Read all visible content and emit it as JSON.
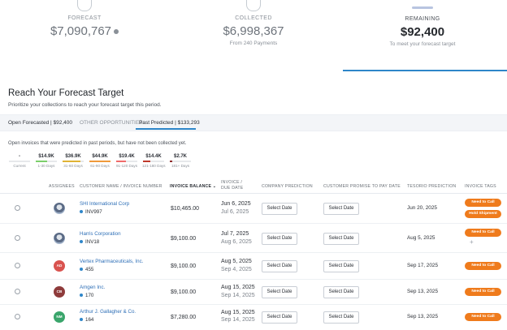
{
  "kpis": [
    {
      "label": "FORECAST",
      "value": "$7,090,767",
      "sub": "",
      "icon": "forecast-icon"
    },
    {
      "label": "COLLECTED",
      "value": "$6,998,367",
      "sub": "From 240 Payments",
      "icon": "collected-icon"
    },
    {
      "label": "REMAINING",
      "value": "$92,400",
      "sub": "To meet your forecast target",
      "icon": "remaining-bar"
    }
  ],
  "section": {
    "title": "Reach Your Forecast Target",
    "subtitle": "Prioritize your collections to reach your forecast target this period."
  },
  "tabs": {
    "open_forecasted": "Open Forecasted | $92,400",
    "other_label": "OTHER OPPORTUNITIES:",
    "past_predicted": "Past Predicted | $133,293"
  },
  "aging_note": "Open invoices that were predicted in past periods, but have not been collected yet.",
  "buckets": [
    {
      "value": "-",
      "label": "Current",
      "color": "#c8ccd2",
      "fill": 0
    },
    {
      "value": "$14.9K",
      "label": "1-30 Days",
      "color": "#7ccf6b",
      "fill": 0.55
    },
    {
      "value": "$36.9K",
      "label": "31-60 Days",
      "color": "#e0b335",
      "fill": 0.85
    },
    {
      "value": "$44.9K",
      "label": "61-90 Days",
      "color": "#ef9a3a",
      "fill": 1
    },
    {
      "value": "$19.4K",
      "label": "91-120 Days",
      "color": "#ef6b6b",
      "fill": 0.45
    },
    {
      "value": "$14.4K",
      "label": "121-180 Days",
      "color": "#c0392b",
      "fill": 0.35
    },
    {
      "value": "$2.7K",
      "label": "181+ Days",
      "color": "#8e2a2a",
      "fill": 0.12
    }
  ],
  "table": {
    "headers": {
      "assignees": "ASSIGNEES",
      "customer": "CUSTOMER NAME / INVOICE NUMBER",
      "balance": "INVOICE BALANCE",
      "invoice_date_1": "INVOICE /",
      "invoice_date_2": "DUE DATE",
      "company_prediction": "COMPANY PREDICTION",
      "customer_promise": "CUSTOMER PROMISE TO PAY DATE",
      "tesorio_prediction": "TESORIO PREDICTION",
      "invoice_tags": "INVOICE TAGS"
    },
    "rows": [
      {
        "avatar": "",
        "avatar_color": "",
        "customer": "SHI International Corp",
        "invoice": "INV997",
        "balance": "$10,465.00",
        "invoice_date": "Jun 6, 2025",
        "due_date": "Jul 6, 2025",
        "company": "Select Date",
        "promise": "Select Date",
        "tesorio": "Jun 20, 2025",
        "tags": [
          "Need to Call",
          "Hold Shipment"
        ]
      },
      {
        "avatar": "",
        "avatar_color": "",
        "customer": "Harris Corporation",
        "invoice": "INV18",
        "balance": "$9,100.00",
        "invoice_date": "Jul 7, 2025",
        "due_date": "Aug 6, 2025",
        "company": "Select Date",
        "promise": "Select Date",
        "tesorio": "Aug 5, 2025",
        "tags": [
          "Need to Call"
        ],
        "plus": "+"
      },
      {
        "avatar": "AD",
        "avatar_color": "#d9534f",
        "customer": "Vertex Pharmaceuticals, Inc.",
        "invoice": "455",
        "balance": "$9,100.00",
        "invoice_date": "Aug 5, 2025",
        "due_date": "Sep 4, 2025",
        "company": "Select Date",
        "promise": "Select Date",
        "tesorio": "Sep 17, 2025",
        "tags": [
          "Need to Call"
        ]
      },
      {
        "avatar": "CB",
        "avatar_color": "#8e3b3b",
        "customer": "Amgen Inc.",
        "invoice": "170",
        "balance": "$9,100.00",
        "invoice_date": "Aug 15, 2025",
        "due_date": "Sep 14, 2025",
        "company": "Select Date",
        "promise": "Select Date",
        "tesorio": "Sep 13, 2025",
        "tags": [
          "Need to Call"
        ]
      },
      {
        "avatar": "NM",
        "avatar_color": "#3aa56b",
        "customer": "Arthur J. Gallagher & Co.",
        "invoice": "164",
        "balance": "$7,280.00",
        "invoice_date": "Aug 15, 2025",
        "due_date": "Sep 14, 2025",
        "company": "Select Date",
        "promise": "Select Date",
        "tesorio": "Sep 13, 2025",
        "tags": [
          "Need to Call"
        ]
      }
    ]
  }
}
